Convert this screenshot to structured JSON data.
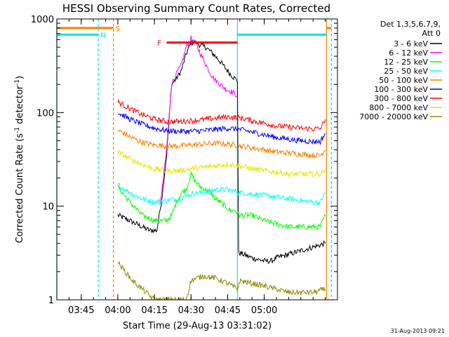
{
  "chart_data": {
    "type": "line",
    "title": "HESSI Observing Summary Count Rates, Corrected",
    "xlabel": "Start Time (29-Aug-13 03:31:02)",
    "ylabel_main": "Corrected Count Rate (s",
    "ylabel_sup1": "-1",
    "ylabel_mid": " detector",
    "ylabel_sup2": "-1",
    "ylabel_end": ")",
    "footer_date": "31-Aug-2013 09:21",
    "yscale": "log",
    "ylim": [
      1,
      1000
    ],
    "xlim_minutes": [
      215,
      330
    ],
    "xticks": [
      {
        "m": 225,
        "label": "03:45"
      },
      {
        "m": 240,
        "label": "04:00"
      },
      {
        "m": 255,
        "label": "04:15"
      },
      {
        "m": 270,
        "label": "04:30"
      },
      {
        "m": 285,
        "label": "04:45"
      },
      {
        "m": 300,
        "label": "05:00"
      }
    ],
    "yticks": [
      {
        "v": 1,
        "label": "1"
      },
      {
        "v": 10,
        "label": "10"
      },
      {
        "v": 100,
        "label": "100"
      },
      {
        "v": 1000,
        "label": "1000"
      }
    ],
    "legend": {
      "header1": "Det 1,3,5,6,7,9,",
      "header2": "Att 0",
      "placement": "right"
    },
    "flags": [
      {
        "label": "S",
        "color": "#ff7f00",
        "y": 800,
        "segments": [
          [
            215,
            238.2
          ],
          [
            325.5,
            327.5
          ]
        ],
        "label_m": 240
      },
      {
        "label": "N",
        "color": "#00e5ee",
        "y": 680,
        "segments": [
          [
            215,
            232
          ],
          [
            289,
            325.5
          ]
        ],
        "label_m": 234
      },
      {
        "label": "F",
        "color": "#ff0000",
        "y": 560,
        "segments": [
          [
            260,
            289
          ]
        ],
        "label_m": 257
      }
    ],
    "vlines": [
      {
        "m": 215,
        "color": "#00e5ee",
        "dashed": false
      },
      {
        "m": 232,
        "color": "#00e5ee",
        "dashed": true
      },
      {
        "m": 238.2,
        "color": "#ff7f00",
        "dashed": true
      },
      {
        "m": 289,
        "color": "#00e5ee",
        "dashed": false
      },
      {
        "m": 325.5,
        "color": "#ff7f00",
        "dashed": false
      },
      {
        "m": 327.5,
        "color": "#00e5ee",
        "dashed": true
      }
    ],
    "series": [
      {
        "name": "3 - 6 keV",
        "color": "#000000",
        "x": [
          240,
          245,
          250,
          253,
          256,
          257,
          258,
          260,
          262,
          264,
          266,
          268,
          270,
          272,
          274,
          276,
          278,
          280,
          282,
          284,
          286,
          288,
          289,
          289.5,
          295,
          300,
          303,
          305,
          325
        ],
        "y": [
          8,
          7,
          6,
          5.5,
          5.5,
          8,
          12,
          35,
          200,
          230,
          280,
          420,
          560,
          560,
          520,
          500,
          450,
          400,
          350,
          300,
          260,
          230,
          220,
          3.2,
          2.8,
          2.6,
          2.6,
          2.8,
          4
        ]
      },
      {
        "name": "6 - 12 keV",
        "color": "#ff00ff",
        "x": [
          257,
          258,
          260,
          262,
          264,
          266,
          268,
          270,
          272,
          274,
          276,
          278,
          280,
          282,
          284,
          286,
          288,
          289
        ],
        "y": [
          10,
          14,
          40,
          200,
          260,
          320,
          500,
          620,
          540,
          420,
          330,
          260,
          220,
          200,
          180,
          170,
          160,
          150
        ]
      },
      {
        "name": "12 - 25 keV",
        "color": "#00ff00",
        "x": [
          240,
          245,
          250,
          255,
          258,
          260,
          262,
          264,
          266,
          268,
          270,
          272,
          274,
          276,
          278,
          280,
          282,
          284,
          286,
          288,
          290,
          295,
          300,
          305,
          310,
          315,
          320,
          323,
          325
        ],
        "y": [
          16,
          11,
          8,
          7,
          7,
          7,
          8,
          11,
          14,
          15,
          22,
          18,
          16,
          15,
          14,
          12,
          11,
          10,
          9,
          9,
          8,
          8,
          7,
          6.5,
          6,
          6,
          6,
          6,
          8
        ]
      },
      {
        "name": "25 - 50 keV",
        "color": "#00ffff",
        "x": [
          240,
          243,
          246,
          250,
          255,
          260,
          265,
          270,
          275,
          280,
          285,
          290,
          295,
          300,
          305,
          310,
          315,
          320,
          323,
          325
        ],
        "y": [
          17,
          15,
          13.5,
          12,
          11,
          11.5,
          12,
          13.5,
          14,
          15,
          15,
          14,
          13.5,
          13,
          12.5,
          12,
          11.5,
          11,
          11,
          14
        ]
      },
      {
        "name": "50 - 100 keV",
        "color": "#ff7f00",
        "x": [
          240,
          245,
          250,
          255,
          260,
          265,
          270,
          275,
          280,
          285,
          290,
          295,
          300,
          305,
          310,
          315,
          320,
          323,
          325
        ],
        "y": [
          65,
          55,
          48,
          45,
          44,
          44,
          45,
          46,
          47,
          46,
          44,
          42,
          40,
          38,
          37,
          36,
          35,
          35,
          40
        ]
      },
      {
        "name": "100 - 300 keV",
        "color": "#0000ff",
        "x": [
          240,
          245,
          250,
          255,
          260,
          265,
          270,
          275,
          280,
          285,
          290,
          295,
          300,
          305,
          310,
          315,
          320,
          323,
          325
        ],
        "y": [
          100,
          85,
          75,
          68,
          64,
          63,
          63,
          64,
          66,
          68,
          66,
          62,
          58,
          54,
          52,
          50,
          49,
          49,
          60
        ]
      },
      {
        "name": "300 - 800 keV",
        "color": "#ff0000",
        "x": [
          240,
          245,
          250,
          255,
          260,
          265,
          270,
          275,
          280,
          285,
          290,
          295,
          300,
          305,
          310,
          315,
          320,
          323,
          325
        ],
        "y": [
          130,
          110,
          95,
          85,
          80,
          80,
          82,
          84,
          87,
          90,
          88,
          82,
          77,
          72,
          70,
          68,
          67,
          67,
          85
        ]
      },
      {
        "name": "800 - 7000 keV",
        "color": "#e5e500",
        "x": [
          240,
          245,
          250,
          255,
          260,
          265,
          270,
          275,
          280,
          285,
          290,
          295,
          300,
          305,
          310,
          315,
          320,
          323,
          325
        ],
        "y": [
          38,
          32,
          28,
          25,
          24,
          24,
          25,
          26,
          27,
          28,
          27,
          25,
          24,
          23,
          22,
          22,
          22,
          22,
          25
        ]
      },
      {
        "name": "7000 - 20000 keV",
        "color": "#8b8b00",
        "x": [
          240,
          243,
          246,
          250,
          255,
          260,
          265,
          268,
          270,
          275,
          280,
          285,
          289,
          290,
          295,
          300,
          305,
          310,
          315,
          320,
          325
        ],
        "y": [
          2.5,
          2.0,
          1.6,
          1.3,
          1,
          1,
          1,
          1,
          1.6,
          1.8,
          1.7,
          1.5,
          1.3,
          1.6,
          1.5,
          1.4,
          1.3,
          1.2,
          1.2,
          1.2,
          1.3
        ]
      }
    ]
  }
}
